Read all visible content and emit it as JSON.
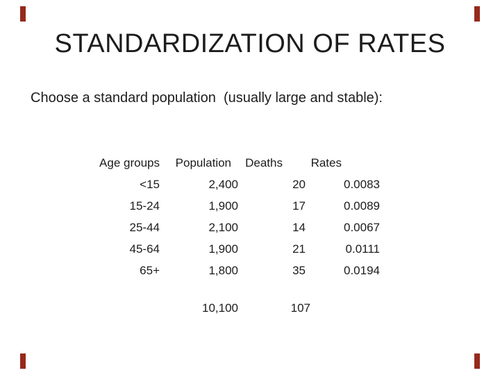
{
  "slide": {
    "title": "STANDARDIZATION OF RATES",
    "subtitle": "Choose a standard population  (usually large and stable):",
    "table": {
      "headers": {
        "age_groups": "Age groups",
        "population": "Population",
        "deaths": "Deaths",
        "rates": "Rates"
      },
      "rows": [
        {
          "age": "<15",
          "population": "2,400",
          "deaths": "20",
          "rate": "0.0083"
        },
        {
          "age": "15-24",
          "population": "1,900",
          "deaths": "17",
          "rate": "0.0089"
        },
        {
          "age": "25-44",
          "population": "2,100",
          "deaths": "14",
          "rate": "0.0067"
        },
        {
          "age": "45-64",
          "population": "1,900",
          "deaths": "21",
          "rate": "0.0111"
        },
        {
          "age": "65+",
          "population": "1,800",
          "deaths": "35",
          "rate": "0.0194"
        }
      ],
      "totals": {
        "population": "10,100",
        "deaths": "107"
      }
    },
    "colors": {
      "background": "#ffffff",
      "text": "#1c1c1c",
      "edge_dash": "#96291b"
    }
  }
}
